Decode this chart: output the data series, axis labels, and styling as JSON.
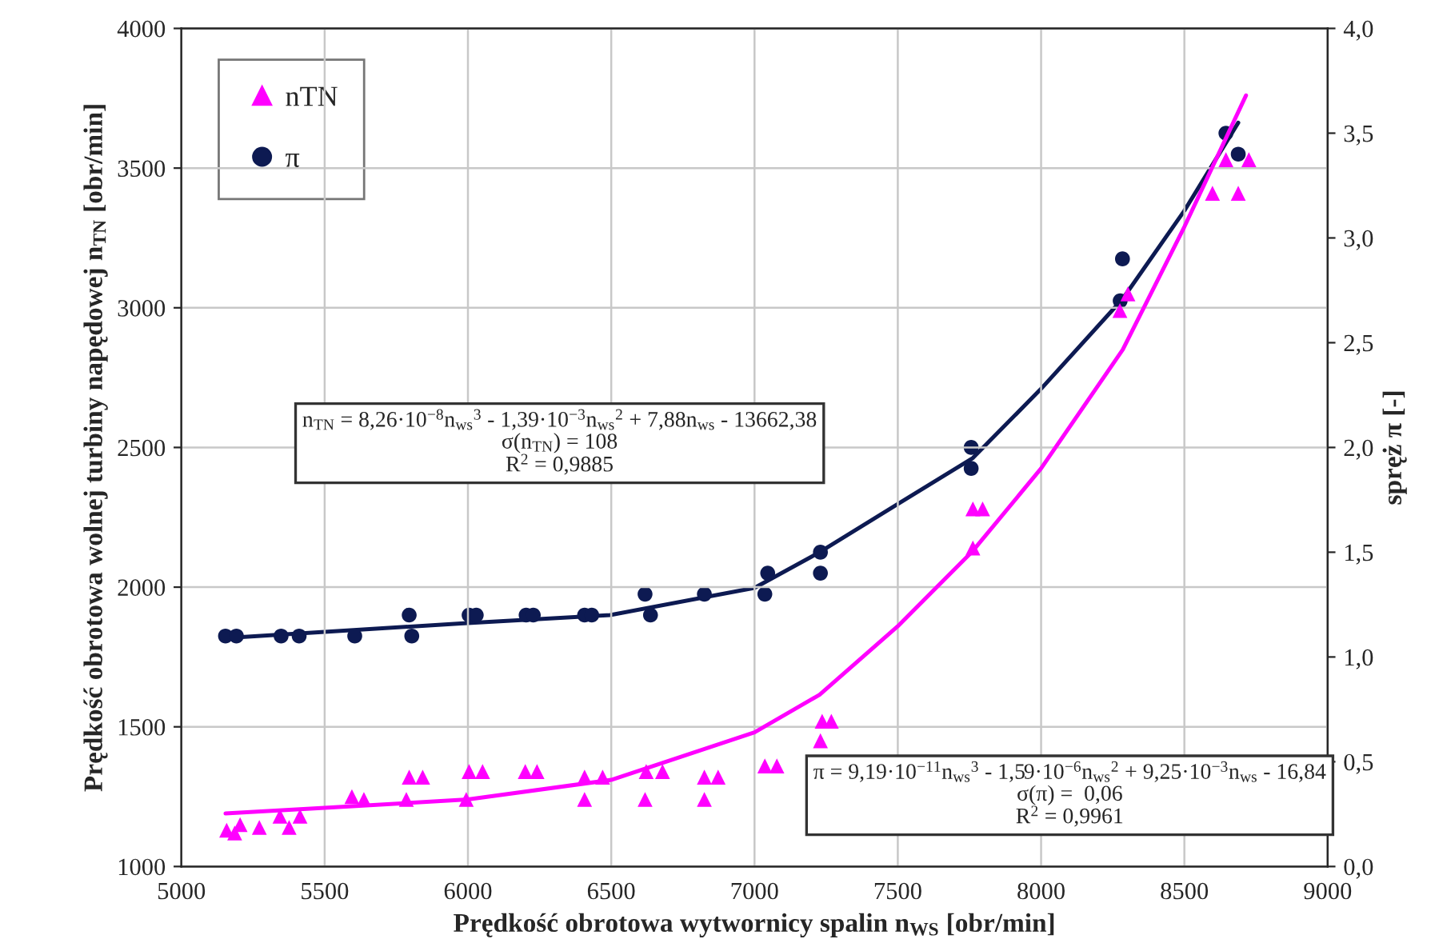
{
  "chart_data": {
    "type": "scatter",
    "xlabel": "Prędkość obrotowa wytwornicy spalin n$_{WS}$ [obr/min]",
    "ylabel": "Prędkość obrotowa wolnej turbiny napędowej n$_{TN}$ [obr/min]",
    "y2label": "spręż π [-]",
    "xlim": [
      5000,
      9000
    ],
    "xticks": [
      5000,
      5500,
      6000,
      6500,
      7000,
      7500,
      8000,
      8500,
      9000
    ],
    "ylim": [
      1000,
      4000
    ],
    "yticks": [
      1000,
      1500,
      2000,
      2500,
      3000,
      3500,
      4000
    ],
    "y2lim": [
      0,
      4
    ],
    "y2ticks": [
      {
        "value": 0,
        "label": "0,0"
      },
      {
        "value": 0.5,
        "label": "0,5"
      },
      {
        "value": 1,
        "label": "1,0"
      },
      {
        "value": 1.5,
        "label": "1,5"
      },
      {
        "value": 2,
        "label": "2,0"
      },
      {
        "value": 2.5,
        "label": "2,5"
      },
      {
        "value": 3,
        "label": "3,0"
      },
      {
        "value": 3.5,
        "label": "3,5"
      },
      {
        "value": 4,
        "label": "4,0"
      }
    ],
    "grid": true,
    "legend": "top left",
    "annotations": [
      "n$_{TN}$ = 8,26·10$^{−8}$n$_{ws}$$^{3}$ - 1,39·10$^{−3}$n$_{ws}$$^{2}$ + 7,88n$_{ws}$ - 13662,38\nσ(n$_{TN}$) = 108\nR$^{2}$ = 0,9885",
      "π = 9,19·10$^{−11}$n$_{ws}$$^{3}$ - 1,59·10$^{−6}$n$_{ws}$$^{2}$ + 9,25·10$^{−3}$n$_{ws}$ - 16,84\nσ(π) =  0,06\nR$^{2}$ = 0,9961"
    ],
    "series": [
      {
        "name": "nTN",
        "marker": "triangle",
        "color": "#ff00ff",
        "x": [
          5158,
          5186,
          5205,
          5272,
          5344,
          5376,
          5414,
          5595,
          5637,
          5785,
          5795,
          5842,
          5994,
          6004,
          6051,
          6200,
          6241,
          6407,
          6407,
          6470,
          6618,
          6622,
          6679,
          6825,
          6825,
          6873,
          7036,
          7078,
          7230,
          7236,
          7268,
          7762,
          7762,
          7796,
          8275,
          8303,
          8598,
          8645,
          8688,
          8725
        ],
        "values": [
          1130,
          1120,
          1150,
          1140,
          1180,
          1140,
          1180,
          1250,
          1240,
          1240,
          1320,
          1320,
          1240,
          1340,
          1340,
          1340,
          1340,
          1240,
          1320,
          1320,
          1240,
          1340,
          1340,
          1240,
          1320,
          1320,
          1360,
          1360,
          1450,
          1520,
          1520,
          2140,
          2280,
          2280,
          2990,
          3050,
          3410,
          3530,
          3410,
          3530
        ]
      },
      {
        "name": "π",
        "axis": "y2",
        "marker": "circle",
        "color": "#0d1a52",
        "x": [
          5154,
          5192,
          5348,
          5411,
          5605,
          5795,
          5804,
          6004,
          6029,
          6203,
          6228,
          6407,
          6432,
          6618,
          6637,
          6825,
          7036,
          7046,
          7230,
          7230,
          7756,
          7756,
          8276,
          8284,
          8645,
          8688
        ],
        "values": [
          1.1,
          1.1,
          1.1,
          1.1,
          1.1,
          1.2,
          1.1,
          1.2,
          1.2,
          1.2,
          1.2,
          1.2,
          1.2,
          1.3,
          1.2,
          1.3,
          1.3,
          1.4,
          1.5,
          1.4,
          2.0,
          1.9,
          2.7,
          2.9,
          3.5,
          3.4
        ]
      },
      {
        "type": "line",
        "color": "#ff00ff",
        "marker": "none",
        "x": [
          5154,
          5500,
          6000,
          6500,
          7000,
          7227,
          7500,
          7762,
          8000,
          8285,
          8500,
          8715
        ],
        "values": [
          1190,
          1210,
          1240,
          1310,
          1480,
          1615,
          1860,
          2130,
          2425,
          2850,
          3290,
          3760
        ]
      },
      {
        "type": "line",
        "axis": "y2",
        "color": "#0d1a52",
        "marker": "none",
        "x": [
          5154,
          5500,
          5975,
          6496,
          7000,
          7227,
          7500,
          7762,
          8000,
          8285,
          8500,
          8688
        ],
        "values": [
          1.09,
          1.12,
          1.16,
          1.2,
          1.33,
          1.5,
          1.73,
          1.95,
          2.28,
          2.71,
          3.13,
          3.55
        ]
      }
    ]
  }
}
